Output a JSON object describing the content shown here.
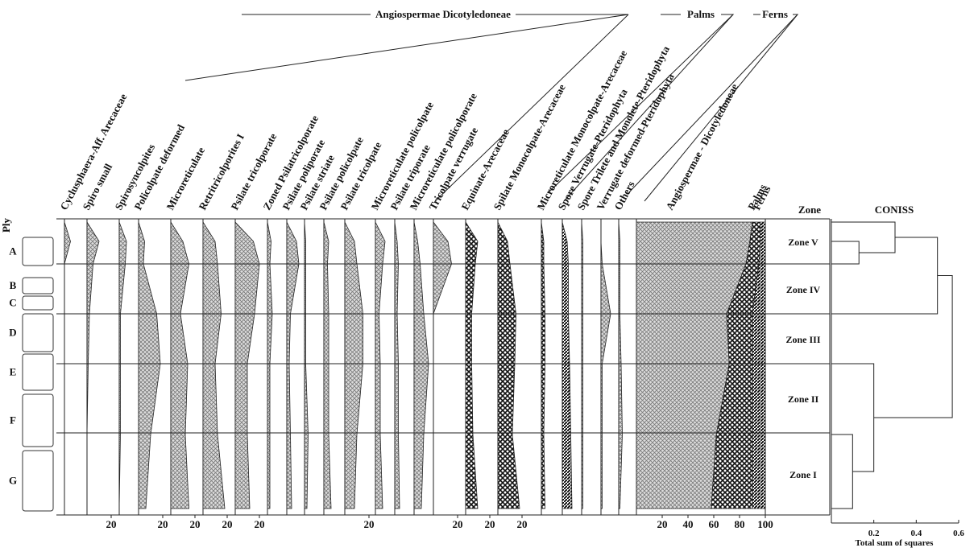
{
  "groups": [
    "Angiospermae Dicotyledoneae",
    "Palms",
    "Ferns"
  ],
  "ply": "Ply",
  "lithology": [
    "A",
    "B",
    "C",
    "D",
    "E",
    "F",
    "G"
  ],
  "taxa": [
    {
      "name": "Cyclusphaera-Aff. Arecaceae",
      "values": [
        0,
        5,
        0,
        0,
        0,
        0,
        0
      ],
      "ticks": []
    },
    {
      "name": "Spiro small",
      "values": [
        0,
        10,
        5,
        2,
        1,
        0,
        0
      ],
      "ticks": [
        20
      ]
    },
    {
      "name": "Spirosyncolpites",
      "values": [
        0,
        6,
        5,
        1,
        1,
        1,
        0
      ],
      "ticks": []
    },
    {
      "name": "Policolpate deformed",
      "values": [
        0,
        5,
        4,
        15,
        18,
        10,
        6
      ],
      "ticks": [
        20
      ]
    },
    {
      "name": "Microreticulate",
      "values": [
        0,
        10,
        15,
        8,
        14,
        12,
        15
      ],
      "ticks": [
        20
      ]
    },
    {
      "name": "Retritricolporites I",
      "values": [
        0,
        10,
        12,
        15,
        10,
        12,
        18
      ],
      "ticks": [
        20
      ]
    },
    {
      "name": "Psilate tricolporate",
      "values": [
        0,
        15,
        20,
        16,
        10,
        10,
        12
      ],
      "ticks": [
        20
      ]
    },
    {
      "name": "Zoned Psilatricolporate",
      "values": [
        0,
        3,
        2,
        4,
        2,
        2,
        2
      ],
      "ticks": []
    },
    {
      "name": "Psilate poliporate",
      "values": [
        0,
        8,
        10,
        3,
        2,
        3,
        4
      ],
      "ticks": []
    },
    {
      "name": "Psilate striate",
      "values": [
        0,
        1,
        1,
        1,
        1,
        3,
        2
      ],
      "ticks": []
    },
    {
      "name": "Psilate policolpate",
      "values": [
        0,
        4,
        3,
        4,
        4,
        4,
        6
      ],
      "ticks": []
    },
    {
      "name": "Psilate tricolpate",
      "values": [
        0,
        8,
        10,
        15,
        15,
        10,
        8
      ],
      "ticks": [
        20
      ]
    },
    {
      "name": "Microreticulate policolpate",
      "values": [
        0,
        8,
        6,
        3,
        4,
        4,
        6
      ],
      "ticks": []
    },
    {
      "name": "Psilate triporate",
      "values": [
        0,
        2,
        3,
        2,
        3,
        3,
        4
      ],
      "ticks": []
    },
    {
      "name": "Microreticulate policolporate",
      "values": [
        0,
        3,
        5,
        8,
        12,
        8,
        6
      ],
      "ticks": []
    },
    {
      "name": "Tricolpate verrugate",
      "values": [
        0,
        12,
        15,
        0,
        0,
        0,
        0
      ],
      "ticks": [
        20
      ]
    },
    {
      "name": "Equinate-Arecaceae",
      "values": [
        0,
        10,
        8,
        5,
        5,
        6,
        10
      ],
      "ticks": [
        20
      ]
    },
    {
      "name": "Spilate Monocolpate-Arecaceae",
      "values": [
        0,
        8,
        10,
        15,
        14,
        12,
        18
      ],
      "ticks": [
        20
      ]
    },
    {
      "name": "Microreticulate Monocolpate-Arecaceae",
      "values": [
        0,
        2,
        2,
        3,
        3,
        2,
        3
      ],
      "ticks": []
    },
    {
      "name": "Spore Verrugate-Pteridophyta",
      "values": [
        0,
        4,
        5,
        5,
        6,
        7,
        8
      ],
      "ticks": []
    },
    {
      "name": "Spore Trilete and Monolete-Pteridophyta",
      "values": [
        0,
        1,
        1,
        1,
        1,
        1,
        1
      ],
      "ticks": []
    },
    {
      "name": "Verrugate deformed-Pteridophyta",
      "values": [
        0,
        0,
        1,
        8,
        1,
        1,
        1
      ],
      "ticks": []
    },
    {
      "name": "Others",
      "values": [
        0,
        1,
        1,
        1,
        2,
        3,
        1
      ],
      "ticks": []
    }
  ],
  "summary": {
    "series": [
      {
        "name": "Angiospermae - Dicotyledoneae",
        "values": [
          90,
          88,
          85,
          70,
          72,
          62,
          58
        ]
      },
      {
        "name": "Palms",
        "values": [
          6,
          8,
          10,
          20,
          18,
          28,
          32
        ]
      },
      {
        "name": "Ferns",
        "values": [
          4,
          4,
          5,
          10,
          10,
          10,
          10
        ]
      }
    ],
    "xlim": [
      0,
      100
    ],
    "xticks": [
      20,
      40,
      60,
      80,
      100
    ]
  },
  "zone_header": "Zone",
  "zones": [
    "Zone V",
    "Zone IV",
    "Zone III",
    "Zone II",
    "Zone I"
  ],
  "coniss": {
    "title": "CONISS",
    "xlabel": "Total sum of squares",
    "xlim": [
      0,
      0.6
    ],
    "xticks": [
      0.2,
      0.4,
      0.6
    ],
    "heights": [
      0.13,
      0.3,
      0.5,
      0.1,
      0.2,
      0.57
    ]
  }
}
